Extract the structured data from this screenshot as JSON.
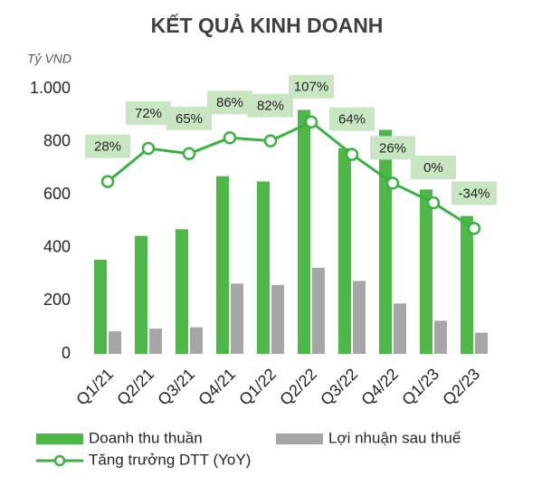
{
  "chart_data": {
    "type": "bar",
    "title": "KẾT QUẢ KINH DOANH",
    "y_label": "Tỷ VND",
    "categories": [
      "Q1/21",
      "Q2/21",
      "Q3/21",
      "Q4/21",
      "Q1/22",
      "Q2/22",
      "Q3/22",
      "Q4/22",
      "Q1/23",
      "Q2/23"
    ],
    "series": [
      {
        "name": "Doanh thu thuần",
        "color": "#4db848",
        "values": [
          355,
          445,
          470,
          670,
          650,
          920,
          775,
          845,
          620,
          520
        ]
      },
      {
        "name": "Lợi nhuận sau thuế",
        "color": "#a6a6a6",
        "values": [
          85,
          95,
          100,
          265,
          260,
          325,
          275,
          190,
          125,
          80
        ]
      },
      {
        "name": "Tăng trưởng DTT (YoY)",
        "type": "line",
        "axis": "y2",
        "color": "#3cb043",
        "label_color": "#c8e6c2",
        "values": [
          28,
          72,
          65,
          86,
          82,
          107,
          64,
          26,
          0,
          -34
        ],
        "value_labels": [
          "28%",
          "72%",
          "65%",
          "86%",
          "82%",
          "107%",
          "64%",
          "26%",
          "0%",
          "-34%"
        ]
      }
    ],
    "ylim": [
      0,
      1000
    ],
    "yticks": [
      0,
      200,
      400,
      600,
      800,
      {
        "value": 1000,
        "label": "1.000"
      }
    ],
    "y2lim": [
      -200,
      151
    ],
    "grid": false
  }
}
